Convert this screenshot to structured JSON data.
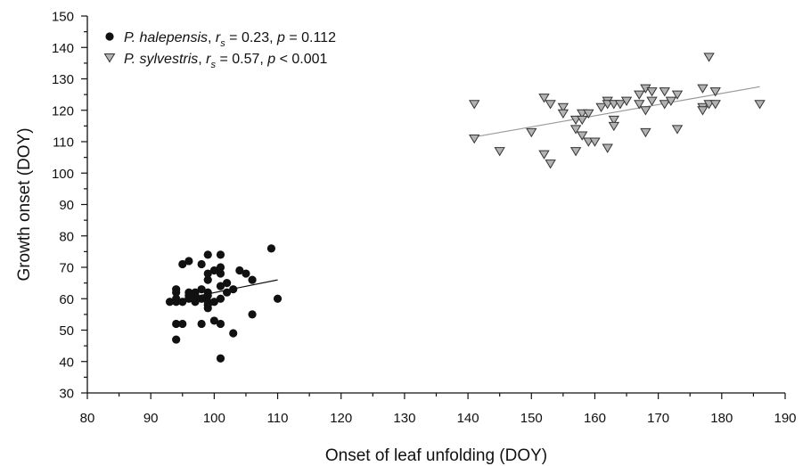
{
  "chart_data": {
    "type": "scatter",
    "xlabel": "Onset of leaf unfolding (DOY)",
    "ylabel": "Growth onset (DOY)",
    "xlim": [
      80,
      190
    ],
    "ylim": [
      30,
      150
    ],
    "xticks": [
      80,
      90,
      100,
      110,
      120,
      130,
      140,
      150,
      160,
      170,
      180,
      190
    ],
    "yticks": [
      30,
      40,
      50,
      60,
      70,
      80,
      90,
      100,
      110,
      120,
      130,
      140,
      150
    ],
    "grid": false,
    "legend_position": "top-left",
    "series": [
      {
        "name": "P. halepensis",
        "legend_text": "P. halepensis, rs = 0.23, p = 0.112",
        "legend_parts": {
          "species": "P. halepensis",
          "sep1": ", ",
          "r": "r",
          "sub": "s",
          "stat": " = 0.23, ",
          "p": "p",
          "pval": " = 0.112"
        },
        "marker": "circle",
        "color": "#111111",
        "points": [
          [
            93,
            59
          ],
          [
            94,
            63
          ],
          [
            94,
            62
          ],
          [
            94,
            60
          ],
          [
            94,
            59
          ],
          [
            94,
            52
          ],
          [
            94,
            47
          ],
          [
            95,
            71
          ],
          [
            95,
            59
          ],
          [
            95,
            52
          ],
          [
            96,
            72
          ],
          [
            96,
            62
          ],
          [
            96,
            61
          ],
          [
            96,
            60
          ],
          [
            97,
            62
          ],
          [
            97,
            61
          ],
          [
            97,
            59
          ],
          [
            98,
            71
          ],
          [
            98,
            63
          ],
          [
            98,
            60
          ],
          [
            98,
            52
          ],
          [
            99,
            74
          ],
          [
            99,
            68
          ],
          [
            99,
            66
          ],
          [
            99,
            62
          ],
          [
            99,
            61
          ],
          [
            99,
            59
          ],
          [
            99,
            58
          ],
          [
            99,
            57
          ],
          [
            100,
            69
          ],
          [
            100,
            59
          ],
          [
            100,
            53
          ],
          [
            101,
            74
          ],
          [
            101,
            70
          ],
          [
            101,
            68
          ],
          [
            101,
            64
          ],
          [
            101,
            60
          ],
          [
            101,
            52
          ],
          [
            101,
            41
          ],
          [
            102,
            65
          ],
          [
            102,
            62
          ],
          [
            103,
            63
          ],
          [
            103,
            49
          ],
          [
            104,
            69
          ],
          [
            105,
            68
          ],
          [
            106,
            66
          ],
          [
            106,
            55
          ],
          [
            109,
            76
          ],
          [
            110,
            60
          ]
        ],
        "trend": {
          "x": [
            94,
            110
          ],
          "y": [
            59.5,
            66
          ],
          "color": "#111111"
        }
      },
      {
        "name": "P. sylvestris",
        "legend_text": "P. sylvestris, rs = 0.57, p < 0.001",
        "legend_parts": {
          "species": "P. sylvestris",
          "sep1": ", ",
          "r": "r",
          "sub": "s",
          "stat": " = 0.57, ",
          "p": "p",
          "pval": " < 0.001"
        },
        "marker": "triangle-down",
        "color": "#b3b3b3",
        "stroke": "#333333",
        "points": [
          [
            141,
            122
          ],
          [
            141,
            111
          ],
          [
            145,
            107
          ],
          [
            150,
            113
          ],
          [
            152,
            124
          ],
          [
            152,
            106
          ],
          [
            153,
            122
          ],
          [
            153,
            103
          ],
          [
            155,
            121
          ],
          [
            155,
            119
          ],
          [
            157,
            117
          ],
          [
            157,
            114
          ],
          [
            157,
            107
          ],
          [
            158,
            119
          ],
          [
            158,
            117
          ],
          [
            158,
            112
          ],
          [
            159,
            119
          ],
          [
            159,
            110
          ],
          [
            160,
            110
          ],
          [
            161,
            121
          ],
          [
            162,
            123
          ],
          [
            162,
            122
          ],
          [
            162,
            108
          ],
          [
            163,
            122
          ],
          [
            163,
            117
          ],
          [
            163,
            115
          ],
          [
            164,
            122
          ],
          [
            165,
            123
          ],
          [
            167,
            125
          ],
          [
            167,
            122
          ],
          [
            168,
            127
          ],
          [
            168,
            120
          ],
          [
            168,
            113
          ],
          [
            169,
            126
          ],
          [
            169,
            123
          ],
          [
            171,
            126
          ],
          [
            171,
            122
          ],
          [
            172,
            123
          ],
          [
            173,
            125
          ],
          [
            173,
            114
          ],
          [
            177,
            127
          ],
          [
            177,
            121
          ],
          [
            177,
            120
          ],
          [
            178,
            137
          ],
          [
            178,
            122
          ],
          [
            179,
            126
          ],
          [
            179,
            122
          ],
          [
            186,
            122
          ]
        ],
        "trend": {
          "x": [
            141,
            186
          ],
          "y": [
            111.5,
            127.5
          ],
          "color": "#999999"
        }
      }
    ]
  }
}
